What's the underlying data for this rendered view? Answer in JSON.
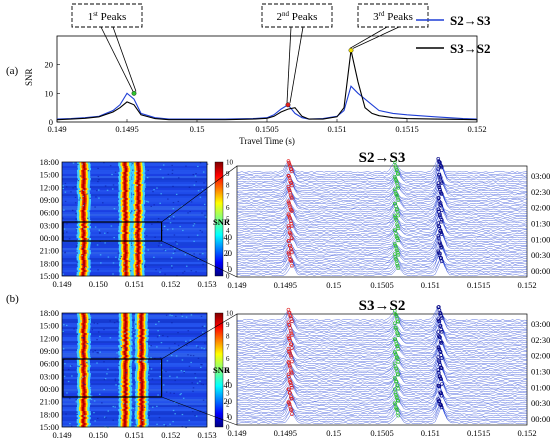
{
  "chart_data": [
    {
      "type": "line",
      "panel_label": "(a)",
      "ylabel": "SNR",
      "xlabel": "Travel Time (s)",
      "xlim": [
        0.149,
        0.152
      ],
      "ylim": [
        0,
        30
      ],
      "xticks": [
        "0.149",
        "0.1495",
        "0.15",
        "0.1505",
        "0.151",
        "0.1515",
        "0.152"
      ],
      "yticks": [
        "0",
        "10",
        "20"
      ],
      "legend_position": "top-right",
      "series": [
        {
          "name": "S2→S3",
          "color": "#1f3fd6",
          "x": [
            0.149,
            0.1491,
            0.1492,
            0.1493,
            0.1494,
            0.14945,
            0.1495,
            0.14955,
            0.1496,
            0.1497,
            0.1498,
            0.15,
            0.1502,
            0.1504,
            0.1505,
            0.15055,
            0.1506,
            0.15065,
            0.1507,
            0.15075,
            0.1508,
            0.1509,
            0.151,
            0.15105,
            0.1511,
            0.15115,
            0.1512,
            0.15125,
            0.1513,
            0.1514,
            0.1515,
            0.1517,
            0.1519,
            0.152
          ],
          "y": [
            1,
            1.2,
            1.5,
            2,
            4,
            6,
            10,
            8,
            3,
            1.5,
            1,
            1,
            1,
            1.2,
            1.5,
            2.5,
            4.5,
            6,
            3,
            1.5,
            1,
            1.2,
            2,
            4,
            12.5,
            10,
            8,
            6,
            4,
            3,
            2.5,
            1.8,
            1.2,
            1
          ]
        },
        {
          "name": "S3→S2",
          "color": "#000000",
          "x": [
            0.149,
            0.1491,
            0.1492,
            0.1493,
            0.1494,
            0.14945,
            0.1495,
            0.14955,
            0.1496,
            0.1497,
            0.1498,
            0.15,
            0.1502,
            0.1504,
            0.1505,
            0.15055,
            0.1506,
            0.15065,
            0.1507,
            0.15075,
            0.1508,
            0.1509,
            0.151,
            0.15105,
            0.1511,
            0.15115,
            0.1512,
            0.15125,
            0.1513,
            0.1514,
            0.1515,
            0.1517,
            0.1519,
            0.152
          ],
          "y": [
            0.8,
            1,
            1.3,
            1.8,
            3.5,
            5,
            7,
            6,
            2.5,
            1.2,
            0.8,
            0.8,
            0.8,
            1,
            1.3,
            2,
            3.5,
            4.5,
            5,
            2,
            1,
            1,
            1.8,
            5,
            25,
            14,
            5,
            3,
            2.2,
            1.5,
            1.2,
            1,
            0.9,
            0.8
          ]
        }
      ],
      "annotations": [
        {
          "label": "1st Peaks",
          "base": "1",
          "sup": "st",
          "rest": " Peaks",
          "x": 0.14955,
          "y": 10,
          "point_color": "#2ec42e"
        },
        {
          "label": "2nd Peaks",
          "base": "2",
          "sup": "nd",
          "rest": " Peaks",
          "x": 0.15065,
          "y": 6,
          "point_color": "#e02020"
        },
        {
          "label": "3rd Peaks",
          "base": "3",
          "sup": "rd",
          "rest": " Peaks",
          "x": 0.1511,
          "y": 25,
          "point_color": "#f2e000"
        }
      ]
    },
    {
      "type": "heatmap",
      "panel": "S2→S3 heatmap",
      "xlim": [
        0.149,
        0.153
      ],
      "xticks": [
        "0.149",
        "0.150",
        "0.151",
        "0.152",
        "0.153"
      ],
      "yticks": [
        "18:00",
        "15:00",
        "12:00",
        "09:00",
        "06:00",
        "03:00",
        "00:00",
        "21:00",
        "18:00",
        "15:00"
      ],
      "colorbar_ticks": [
        "10",
        "9",
        "8",
        "7",
        "6",
        "5",
        "4",
        "3",
        "2",
        "1",
        "0"
      ],
      "stripe_times": [
        0.1496,
        0.15075,
        0.1511
      ],
      "selection_box_time_range": [
        "00:00",
        "03:00"
      ]
    },
    {
      "type": "line",
      "panel": "S2→S3 traces",
      "title": "S2→S3",
      "xlim": [
        0.149,
        0.152
      ],
      "xticks": [
        "0.149",
        "0.1495",
        "0.15",
        "0.1505",
        "0.151",
        "0.1515",
        "0.152"
      ],
      "snr_label": "SNR",
      "snr_ticks": [
        "40",
        "20",
        "0"
      ],
      "time_ticks_right": [
        "03:00",
        "02:30",
        "02:00",
        "01:30",
        "01:00",
        "00:30",
        "00:00"
      ],
      "trace_color": "#1f3fd6",
      "peak_times": [
        0.14955,
        0.15065,
        0.1511
      ],
      "peak_colors": [
        "#e02020",
        "#2ec42e",
        "#000080"
      ]
    },
    {
      "type": "heatmap",
      "panel_label": "(b)",
      "panel": "S3→S2 heatmap",
      "xlim": [
        0.149,
        0.153
      ],
      "xticks": [
        "0.149",
        "0.150",
        "0.151",
        "0.152",
        "0.153"
      ],
      "yticks": [
        "18:00",
        "15:00",
        "12:00",
        "09:00",
        "06:00",
        "03:00",
        "00:00",
        "21:00",
        "18:00",
        "15:00"
      ],
      "colorbar_ticks": [
        "10",
        "9",
        "8",
        "7",
        "6",
        "5",
        "4",
        "3",
        "2",
        "1",
        "0"
      ],
      "stripe_times": [
        0.1496,
        0.15075,
        0.1512
      ],
      "selection_box_time_range": [
        "00:00",
        "06:00"
      ]
    },
    {
      "type": "line",
      "panel": "S3→S2 traces",
      "title": "S3→S2",
      "xlim": [
        0.149,
        0.152
      ],
      "xticks": [
        "0.149",
        "0.1495",
        "0.15",
        "0.1505",
        "0.151",
        "0.1515",
        "0.152"
      ],
      "snr_label": "SNR",
      "snr_ticks": [
        "40",
        "20",
        "0"
      ],
      "time_ticks_right": [
        "03:00",
        "02:30",
        "02:00",
        "01:30",
        "01:00",
        "00:30",
        "00:00"
      ],
      "trace_color": "#1f3fd6",
      "peak_times": [
        0.14955,
        0.15065,
        0.1511
      ],
      "peak_colors": [
        "#e02020",
        "#2ec42e",
        "#000080"
      ]
    }
  ]
}
